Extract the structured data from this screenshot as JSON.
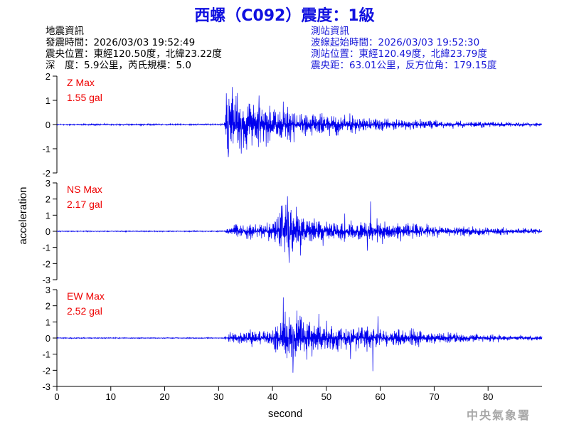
{
  "header": {
    "title": "西螺（C092）震度：1級",
    "quake_info": {
      "heading": "地震資訊",
      "origin_time": "發震時間：2026/03/03 19:52:49",
      "epicenter": "震央位置：東經120.50度，北緯23.22度",
      "depth_magnitude": "深　度：5.9公里，芮氏規模：5.0"
    },
    "station_info": {
      "heading": "測站資訊",
      "wave_start": "波線起始時間：2026/03/03 19:52:30",
      "station_location": "測站位置：東經120.49度，北緯23.79度",
      "distance": "震央距：63.01公里，反方位角：179.15度"
    }
  },
  "watermark": "中央氣象署",
  "colors": {
    "trace": "#0000ee",
    "label": "#ee0000",
    "title": "#1010e0",
    "station_info": "#1a1ad8"
  },
  "chart_data": {
    "type": "line",
    "xlabel": "second",
    "ylabel": "acceleration",
    "xlim": [
      0,
      90
    ],
    "xticks": [
      0,
      10,
      20,
      30,
      40,
      50,
      60,
      70,
      80
    ],
    "panels": [
      {
        "name": "Z Max",
        "max_label": "1.55 gal",
        "ylim": [
          -2,
          2
        ],
        "yticks": [
          -2,
          -1,
          0,
          1,
          2
        ],
        "envelope": {
          "t": [
            0,
            31,
            31.5,
            33,
            36,
            40,
            45,
            50,
            55,
            60,
            65,
            70,
            75,
            80,
            85,
            90
          ],
          "amp": [
            0.03,
            0.03,
            1.3,
            1.1,
            0.85,
            0.65,
            0.5,
            0.42,
            0.33,
            0.25,
            0.2,
            0.15,
            0.12,
            0.1,
            0.08,
            0.07
          ]
        },
        "peaks": [
          [
            32.5,
            1.55
          ],
          [
            31.8,
            -1.35
          ],
          [
            34.2,
            -1.2
          ],
          [
            37.5,
            1.2
          ],
          [
            42.0,
            0.95
          ],
          [
            33.5,
            1.3
          ]
        ]
      },
      {
        "name": "NS Max",
        "max_label": "2.17 gal",
        "ylim": [
          -3,
          3
        ],
        "yticks": [
          -3,
          -2,
          -1,
          0,
          1,
          2,
          3
        ],
        "envelope": {
          "t": [
            0,
            31,
            32,
            35,
            40,
            42,
            44,
            46,
            50,
            55,
            58,
            62,
            66,
            70,
            75,
            80,
            85,
            90
          ],
          "amp": [
            0.03,
            0.03,
            0.35,
            0.4,
            0.5,
            1.4,
            1.2,
            0.8,
            0.65,
            0.5,
            0.8,
            0.5,
            0.4,
            0.33,
            0.27,
            0.22,
            0.18,
            0.15
          ]
        },
        "peaks": [
          [
            42.8,
            2.17
          ],
          [
            43.1,
            -1.95
          ],
          [
            41.8,
            1.6
          ],
          [
            58.2,
            1.85
          ],
          [
            45.2,
            -1.5
          ],
          [
            57.6,
            -1.2
          ],
          [
            53.4,
            1.1
          ]
        ]
      },
      {
        "name": "EW Max",
        "max_label": "2.52 gal",
        "ylim": [
          -3,
          3
        ],
        "yticks": [
          -3,
          -2,
          -1,
          0,
          1,
          2,
          3
        ],
        "envelope": {
          "t": [
            0,
            31,
            32,
            35,
            40,
            42,
            45,
            50,
            55,
            58,
            62,
            66,
            70,
            75,
            80,
            85,
            90
          ],
          "amp": [
            0.03,
            0.03,
            0.3,
            0.35,
            0.55,
            1.5,
            1.2,
            0.9,
            0.65,
            0.7,
            0.5,
            0.42,
            0.33,
            0.27,
            0.2,
            0.15,
            0.13
          ]
        },
        "peaks": [
          [
            42.0,
            2.52
          ],
          [
            43.8,
            -2.15
          ],
          [
            48.6,
            1.5
          ],
          [
            58.6,
            -2.05
          ],
          [
            59.6,
            1.35
          ],
          [
            54.5,
            -1.3
          ],
          [
            44.5,
            1.7
          ]
        ]
      }
    ]
  }
}
